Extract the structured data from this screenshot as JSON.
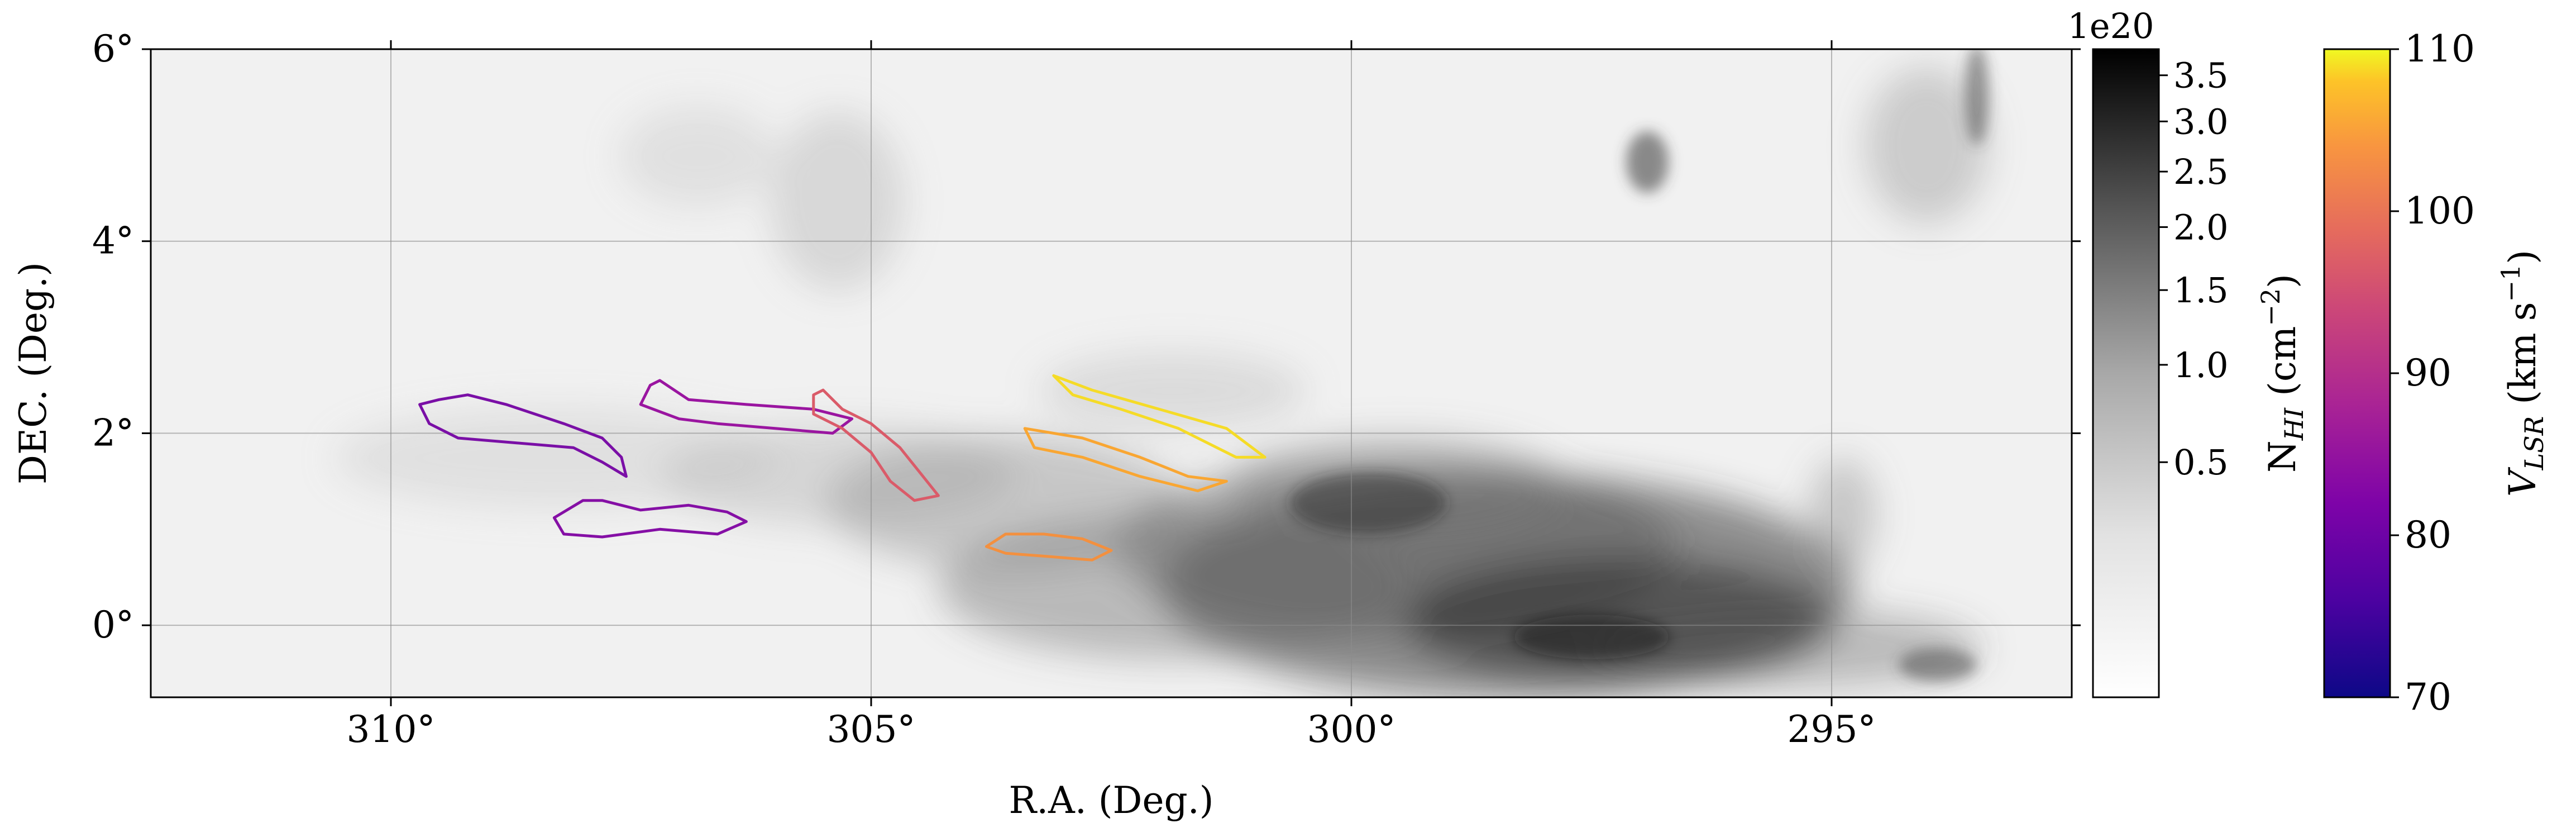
{
  "chart_data": {
    "type": "heatmap",
    "title": "",
    "xlabel": "R.A. (Deg.)",
    "ylabel": "DEC. (Deg.)",
    "xlim": [
      312.5,
      292.5
    ],
    "ylim": [
      -0.75,
      6.0
    ],
    "x_ticks": [
      310,
      305,
      300,
      295
    ],
    "x_tick_labels": [
      "310°",
      "305°",
      "300°",
      "295°"
    ],
    "y_ticks": [
      0,
      2,
      4,
      6
    ],
    "y_tick_labels": [
      "0°",
      "2°",
      "4°",
      "6°"
    ],
    "grid": true,
    "nhi_colorbar": {
      "label": "N",
      "label_sub": "HI",
      "label_unit": " (cm",
      "label_exp": "−2",
      "label_close": ")",
      "offset_text": "1e20",
      "colormap": "gray_r",
      "scale": "sqrt",
      "range": [
        0,
        3.8
      ],
      "ticks": [
        0.5,
        1.0,
        1.5,
        2.0,
        2.5,
        3.0,
        3.5
      ],
      "tick_labels": [
        "0.5",
        "1.0",
        "1.5",
        "2.0",
        "2.5",
        "3.0",
        "3.5"
      ]
    },
    "vlsr_colorbar": {
      "label_v": "V",
      "label_sub": "LSR",
      "label_unit": " (km s",
      "label_exp": "−1",
      "label_close": ")",
      "colormap": "plasma",
      "range": [
        70,
        110
      ],
      "ticks": [
        70,
        80,
        90,
        100,
        110
      ],
      "tick_labels": [
        "70",
        "80",
        "90",
        "100",
        "110"
      ]
    },
    "clouds": [
      {
        "vlsr": 81,
        "color": "#7a0fa6",
        "outline": [
          [
            309.5,
            2.35
          ],
          [
            309.2,
            2.4
          ],
          [
            308.8,
            2.3
          ],
          [
            308.2,
            2.1
          ],
          [
            307.8,
            1.95
          ],
          [
            307.6,
            1.75
          ],
          [
            307.55,
            1.55
          ],
          [
            307.8,
            1.7
          ],
          [
            308.1,
            1.85
          ],
          [
            308.7,
            1.9
          ],
          [
            309.3,
            1.95
          ],
          [
            309.6,
            2.1
          ],
          [
            309.7,
            2.3
          ]
        ]
      },
      {
        "vlsr": 82,
        "color": "#850fa5",
        "outline": [
          [
            307.8,
            1.3
          ],
          [
            307.4,
            1.2
          ],
          [
            306.9,
            1.25
          ],
          [
            306.5,
            1.18
          ],
          [
            306.3,
            1.08
          ],
          [
            306.6,
            0.95
          ],
          [
            307.2,
            1.0
          ],
          [
            307.8,
            0.92
          ],
          [
            308.2,
            0.95
          ],
          [
            308.3,
            1.12
          ],
          [
            308.0,
            1.3
          ]
        ]
      },
      {
        "vlsr": 84,
        "color": "#9a15a0",
        "outline": [
          [
            307.2,
            2.55
          ],
          [
            306.9,
            2.35
          ],
          [
            306.3,
            2.3
          ],
          [
            305.6,
            2.25
          ],
          [
            305.2,
            2.15
          ],
          [
            305.4,
            2.0
          ],
          [
            306.0,
            2.05
          ],
          [
            306.6,
            2.1
          ],
          [
            307.0,
            2.15
          ],
          [
            307.4,
            2.3
          ],
          [
            307.3,
            2.5
          ]
        ]
      },
      {
        "vlsr": 93,
        "color": "#da5b69",
        "outline": [
          [
            305.5,
            2.45
          ],
          [
            305.3,
            2.25
          ],
          [
            305.0,
            2.1
          ],
          [
            304.7,
            1.85
          ],
          [
            304.5,
            1.6
          ],
          [
            304.3,
            1.35
          ],
          [
            304.55,
            1.3
          ],
          [
            304.8,
            1.5
          ],
          [
            305.0,
            1.8
          ],
          [
            305.3,
            2.05
          ],
          [
            305.6,
            2.2
          ],
          [
            305.6,
            2.4
          ]
        ]
      },
      {
        "vlsr": 101,
        "color": "#f3903f",
        "outline": [
          [
            303.6,
            0.95
          ],
          [
            303.2,
            0.95
          ],
          [
            302.8,
            0.9
          ],
          [
            302.5,
            0.78
          ],
          [
            302.7,
            0.68
          ],
          [
            303.2,
            0.72
          ],
          [
            303.6,
            0.75
          ],
          [
            303.8,
            0.82
          ]
        ]
      },
      {
        "vlsr": 104,
        "color": "#f9a632",
        "outline": [
          [
            303.4,
            2.05
          ],
          [
            302.8,
            1.95
          ],
          [
            302.2,
            1.75
          ],
          [
            301.7,
            1.55
          ],
          [
            301.3,
            1.5
          ],
          [
            301.6,
            1.4
          ],
          [
            302.2,
            1.55
          ],
          [
            302.8,
            1.75
          ],
          [
            303.3,
            1.85
          ]
        ]
      },
      {
        "vlsr": 108,
        "color": "#f5db27",
        "outline": [
          [
            303.1,
            2.6
          ],
          [
            302.7,
            2.45
          ],
          [
            302.0,
            2.25
          ],
          [
            301.3,
            2.05
          ],
          [
            300.9,
            1.75
          ],
          [
            301.2,
            1.75
          ],
          [
            301.8,
            2.05
          ],
          [
            302.4,
            2.25
          ],
          [
            302.9,
            2.4
          ]
        ]
      }
    ]
  }
}
